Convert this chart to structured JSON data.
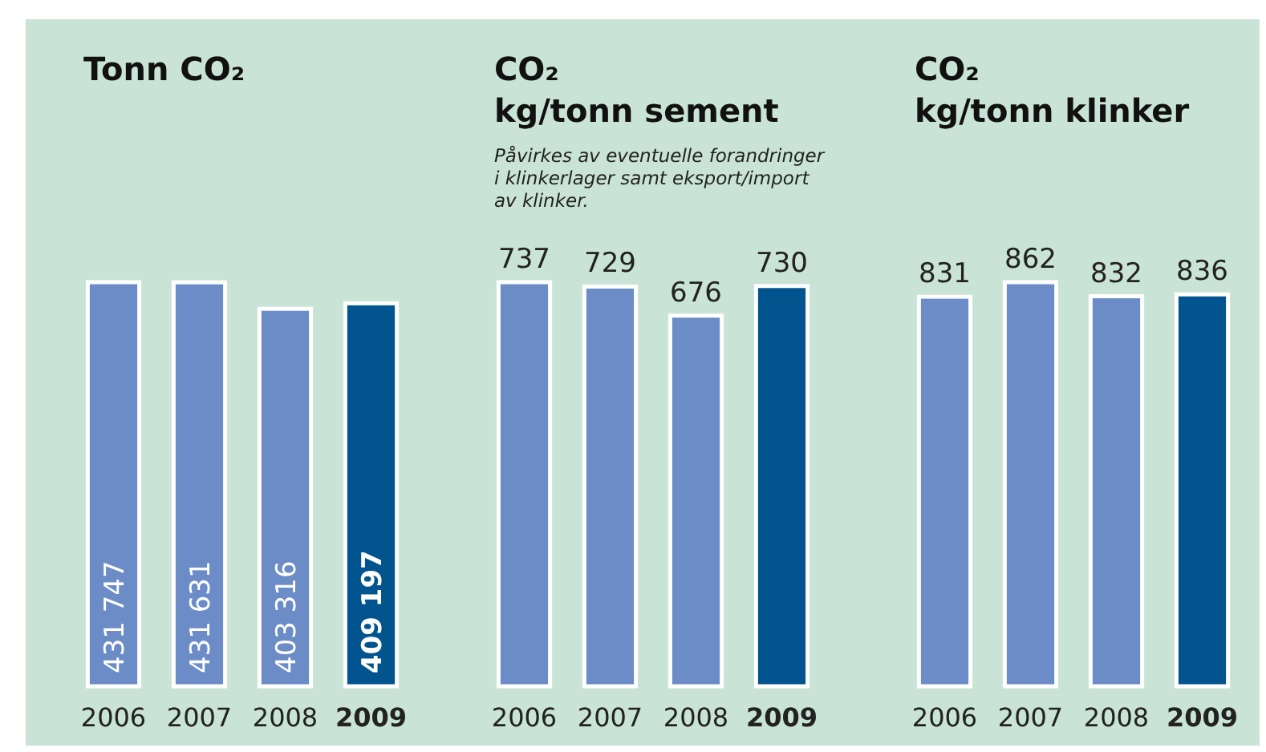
{
  "chart_data": [
    {
      "type": "bar",
      "title": "Tonn CO₂",
      "categories": [
        "2006",
        "2007",
        "2008",
        "2009"
      ],
      "values": [
        431747,
        431631,
        403316,
        409197
      ],
      "colors": [
        "#6b8cc6",
        "#6b8cc6",
        "#6b8cc6",
        "#02548f"
      ],
      "value_labels": [
        "431 747",
        "431 631",
        "403 316",
        "409 197"
      ]
    },
    {
      "type": "bar",
      "title": "CO₂\nkg/tonn sement",
      "subtitle": "Påvirkes av eventuelle forandringer\ni klinkerlager samt eksport/import\nav klinker.",
      "categories": [
        "2006",
        "2007",
        "2008",
        "2009"
      ],
      "values": [
        737,
        729,
        676,
        730
      ],
      "colors": [
        "#6b8cc6",
        "#6b8cc6",
        "#6b8cc6",
        "#02548f"
      ],
      "data_labels": true
    },
    {
      "type": "bar",
      "title": "CO₂\nkg/tonn klinker",
      "categories": [
        "2006",
        "2007",
        "2008",
        "2009"
      ],
      "values": [
        831,
        862,
        832,
        836
      ],
      "colors": [
        "#6b8cc6",
        "#6b8cc6",
        "#6b8cc6",
        "#02548f"
      ],
      "data_labels": true
    }
  ]
}
